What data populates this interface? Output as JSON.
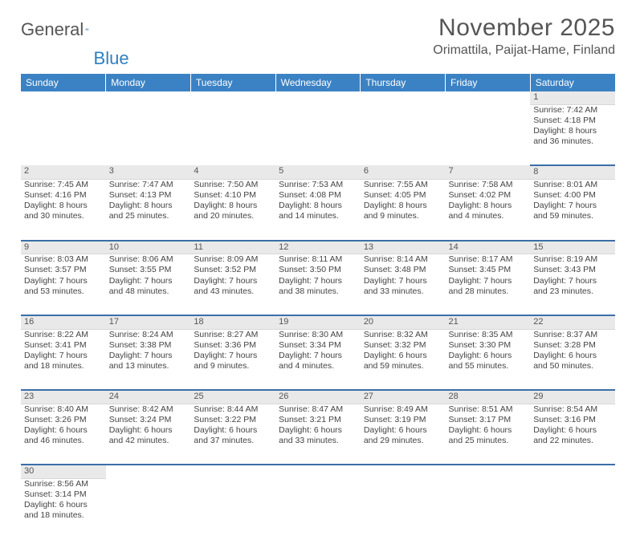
{
  "logo": {
    "text_general": "General",
    "text_blue": "Blue"
  },
  "title": "November 2025",
  "subtitle": "Orimattila, Paijat-Hame, Finland",
  "colors": {
    "header_bg": "#3b82c4",
    "row_divider": "#3b6fa8",
    "daynum_bg": "#e9e9e9",
    "text": "#444444"
  },
  "weekdays": [
    "Sunday",
    "Monday",
    "Tuesday",
    "Wednesday",
    "Thursday",
    "Friday",
    "Saturday"
  ],
  "weeks": [
    {
      "nums": [
        "",
        "",
        "",
        "",
        "",
        "",
        "1"
      ],
      "cells": [
        null,
        null,
        null,
        null,
        null,
        null,
        {
          "sunrise": "Sunrise: 7:42 AM",
          "sunset": "Sunset: 4:18 PM",
          "daylight": "Daylight: 8 hours and 36 minutes."
        }
      ]
    },
    {
      "nums": [
        "2",
        "3",
        "4",
        "5",
        "6",
        "7",
        "8"
      ],
      "cells": [
        {
          "sunrise": "Sunrise: 7:45 AM",
          "sunset": "Sunset: 4:16 PM",
          "daylight": "Daylight: 8 hours and 30 minutes."
        },
        {
          "sunrise": "Sunrise: 7:47 AM",
          "sunset": "Sunset: 4:13 PM",
          "daylight": "Daylight: 8 hours and 25 minutes."
        },
        {
          "sunrise": "Sunrise: 7:50 AM",
          "sunset": "Sunset: 4:10 PM",
          "daylight": "Daylight: 8 hours and 20 minutes."
        },
        {
          "sunrise": "Sunrise: 7:53 AM",
          "sunset": "Sunset: 4:08 PM",
          "daylight": "Daylight: 8 hours and 14 minutes."
        },
        {
          "sunrise": "Sunrise: 7:55 AM",
          "sunset": "Sunset: 4:05 PM",
          "daylight": "Daylight: 8 hours and 9 minutes."
        },
        {
          "sunrise": "Sunrise: 7:58 AM",
          "sunset": "Sunset: 4:02 PM",
          "daylight": "Daylight: 8 hours and 4 minutes."
        },
        {
          "sunrise": "Sunrise: 8:01 AM",
          "sunset": "Sunset: 4:00 PM",
          "daylight": "Daylight: 7 hours and 59 minutes."
        }
      ]
    },
    {
      "nums": [
        "9",
        "10",
        "11",
        "12",
        "13",
        "14",
        "15"
      ],
      "cells": [
        {
          "sunrise": "Sunrise: 8:03 AM",
          "sunset": "Sunset: 3:57 PM",
          "daylight": "Daylight: 7 hours and 53 minutes."
        },
        {
          "sunrise": "Sunrise: 8:06 AM",
          "sunset": "Sunset: 3:55 PM",
          "daylight": "Daylight: 7 hours and 48 minutes."
        },
        {
          "sunrise": "Sunrise: 8:09 AM",
          "sunset": "Sunset: 3:52 PM",
          "daylight": "Daylight: 7 hours and 43 minutes."
        },
        {
          "sunrise": "Sunrise: 8:11 AM",
          "sunset": "Sunset: 3:50 PM",
          "daylight": "Daylight: 7 hours and 38 minutes."
        },
        {
          "sunrise": "Sunrise: 8:14 AM",
          "sunset": "Sunset: 3:48 PM",
          "daylight": "Daylight: 7 hours and 33 minutes."
        },
        {
          "sunrise": "Sunrise: 8:17 AM",
          "sunset": "Sunset: 3:45 PM",
          "daylight": "Daylight: 7 hours and 28 minutes."
        },
        {
          "sunrise": "Sunrise: 8:19 AM",
          "sunset": "Sunset: 3:43 PM",
          "daylight": "Daylight: 7 hours and 23 minutes."
        }
      ]
    },
    {
      "nums": [
        "16",
        "17",
        "18",
        "19",
        "20",
        "21",
        "22"
      ],
      "cells": [
        {
          "sunrise": "Sunrise: 8:22 AM",
          "sunset": "Sunset: 3:41 PM",
          "daylight": "Daylight: 7 hours and 18 minutes."
        },
        {
          "sunrise": "Sunrise: 8:24 AM",
          "sunset": "Sunset: 3:38 PM",
          "daylight": "Daylight: 7 hours and 13 minutes."
        },
        {
          "sunrise": "Sunrise: 8:27 AM",
          "sunset": "Sunset: 3:36 PM",
          "daylight": "Daylight: 7 hours and 9 minutes."
        },
        {
          "sunrise": "Sunrise: 8:30 AM",
          "sunset": "Sunset: 3:34 PM",
          "daylight": "Daylight: 7 hours and 4 minutes."
        },
        {
          "sunrise": "Sunrise: 8:32 AM",
          "sunset": "Sunset: 3:32 PM",
          "daylight": "Daylight: 6 hours and 59 minutes."
        },
        {
          "sunrise": "Sunrise: 8:35 AM",
          "sunset": "Sunset: 3:30 PM",
          "daylight": "Daylight: 6 hours and 55 minutes."
        },
        {
          "sunrise": "Sunrise: 8:37 AM",
          "sunset": "Sunset: 3:28 PM",
          "daylight": "Daylight: 6 hours and 50 minutes."
        }
      ]
    },
    {
      "nums": [
        "23",
        "24",
        "25",
        "26",
        "27",
        "28",
        "29"
      ],
      "cells": [
        {
          "sunrise": "Sunrise: 8:40 AM",
          "sunset": "Sunset: 3:26 PM",
          "daylight": "Daylight: 6 hours and 46 minutes."
        },
        {
          "sunrise": "Sunrise: 8:42 AM",
          "sunset": "Sunset: 3:24 PM",
          "daylight": "Daylight: 6 hours and 42 minutes."
        },
        {
          "sunrise": "Sunrise: 8:44 AM",
          "sunset": "Sunset: 3:22 PM",
          "daylight": "Daylight: 6 hours and 37 minutes."
        },
        {
          "sunrise": "Sunrise: 8:47 AM",
          "sunset": "Sunset: 3:21 PM",
          "daylight": "Daylight: 6 hours and 33 minutes."
        },
        {
          "sunrise": "Sunrise: 8:49 AM",
          "sunset": "Sunset: 3:19 PM",
          "daylight": "Daylight: 6 hours and 29 minutes."
        },
        {
          "sunrise": "Sunrise: 8:51 AM",
          "sunset": "Sunset: 3:17 PM",
          "daylight": "Daylight: 6 hours and 25 minutes."
        },
        {
          "sunrise": "Sunrise: 8:54 AM",
          "sunset": "Sunset: 3:16 PM",
          "daylight": "Daylight: 6 hours and 22 minutes."
        }
      ]
    },
    {
      "nums": [
        "30",
        "",
        "",
        "",
        "",
        "",
        ""
      ],
      "cells": [
        {
          "sunrise": "Sunrise: 8:56 AM",
          "sunset": "Sunset: 3:14 PM",
          "daylight": "Daylight: 6 hours and 18 minutes."
        },
        null,
        null,
        null,
        null,
        null,
        null
      ]
    }
  ]
}
